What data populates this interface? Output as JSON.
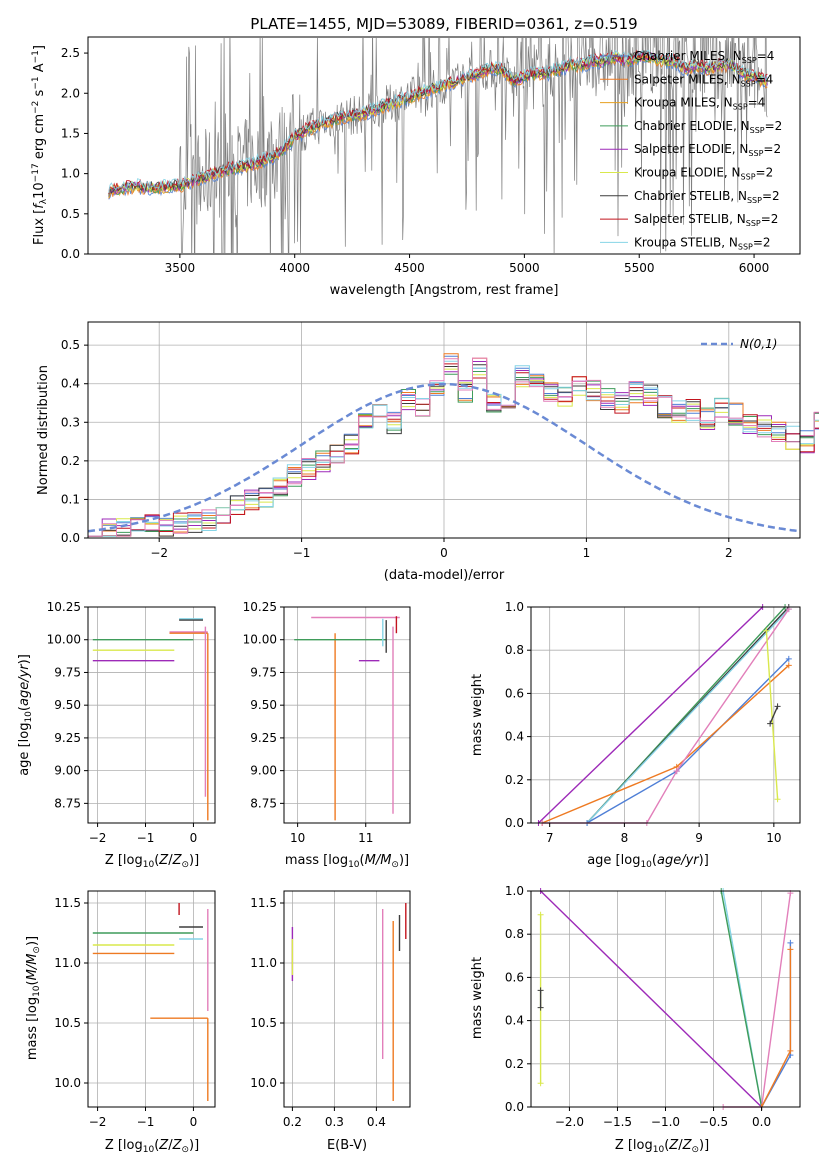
{
  "figure_title": "PLATE=1455, MJD=53089, FIBERID=0361, z=0.519",
  "colors": {
    "chabrier_miles": "#4f7fd6",
    "salpeter_miles": "#ee7a22",
    "kroupa_miles": "#e6a020",
    "chabrier_elodie": "#3f9c5a",
    "salpeter_elodie": "#9d2ab8",
    "kroupa_elodie": "#d9e84c",
    "chabrier_stelib": "#3d3d3d",
    "salpeter_stelib": "#c2141e",
    "kroupa_stelib": "#86d4e6",
    "pink": "#e27fba",
    "gaussian": "#6a8ad4",
    "data_line": "#7f7f7f",
    "grid": "#b0b0b0"
  },
  "chart_data": [
    {
      "id": "spectrum",
      "type": "line",
      "title": "PLATE=1455, MJD=53089, FIBERID=0361, z=0.519",
      "xlabel": "wavelength [Angstrom, rest frame]",
      "ylabel": "Flux [f_λ 10^-17 erg cm^-2 s^-1 A^-1]",
      "xlim": [
        3100,
        6200
      ],
      "ylim": [
        0,
        2.7
      ],
      "xticks": [
        3500,
        4000,
        4500,
        5000,
        5500,
        6000
      ],
      "yticks": [
        0.0,
        0.5,
        1.0,
        1.5,
        2.0,
        2.5
      ],
      "grid": false,
      "legend_position": "top-right",
      "legend": [
        {
          "label": "Chabrier MILES, N_SSP=4",
          "color": "#4f7fd6"
        },
        {
          "label": "Salpeter MILES, N_SSP=4",
          "color": "#ee7a22"
        },
        {
          "label": "Kroupa MILES, N_SSP=4",
          "color": "#e6a020"
        },
        {
          "label": "Chabrier ELODIE, N_SSP=2",
          "color": "#3f9c5a"
        },
        {
          "label": "Salpeter ELODIE, N_SSP=2",
          "color": "#9d2ab8"
        },
        {
          "label": "Kroupa ELODIE, N_SSP=2",
          "color": "#d9e84c"
        },
        {
          "label": "Chabrier STELIB, N_SSP=2",
          "color": "#3d3d3d"
        },
        {
          "label": "Salpeter STELIB, N_SSP=2",
          "color": "#c2141e"
        },
        {
          "label": "Kroupa STELIB, N_SSP=2",
          "color": "#86d4e6"
        }
      ],
      "model_x": [
        3190,
        3250,
        3300,
        3350,
        3400,
        3450,
        3500,
        3550,
        3600,
        3650,
        3700,
        3750,
        3800,
        3850,
        3900,
        3950,
        4000,
        4050,
        4100,
        4150,
        4200,
        4250,
        4300,
        4350,
        4400,
        4450,
        4500,
        4550,
        4600,
        4650,
        4700,
        4750,
        4800,
        4850,
        4900,
        4950,
        5000,
        5050,
        5100,
        5150,
        5200,
        5250,
        5300,
        5350,
        5400,
        5450,
        5500,
        5550,
        5600,
        5650,
        5700,
        5750,
        5800,
        5850,
        5900,
        5950,
        6000,
        6050
      ],
      "model_y": [
        0.78,
        0.82,
        0.84,
        0.83,
        0.82,
        0.84,
        0.85,
        0.9,
        0.95,
        1.0,
        1.05,
        1.08,
        1.1,
        1.15,
        1.2,
        1.3,
        1.45,
        1.55,
        1.6,
        1.65,
        1.7,
        1.72,
        1.75,
        1.8,
        1.85,
        1.9,
        1.95,
        2.0,
        2.05,
        2.1,
        2.15,
        2.2,
        2.25,
        2.3,
        2.3,
        2.15,
        2.2,
        2.25,
        2.25,
        2.3,
        2.35,
        2.35,
        2.4,
        2.4,
        2.45,
        2.4,
        2.45,
        2.45,
        2.4,
        2.4,
        2.3,
        2.35,
        2.3,
        2.35,
        2.35,
        2.25,
        2.2,
        2.15
      ]
    },
    {
      "id": "residuals",
      "type": "line",
      "xlabel": "(data-model)/error",
      "ylabel": "Normed distribution",
      "xlim": [
        -2.5,
        2.5
      ],
      "ylim": [
        0,
        0.56
      ],
      "xticks": [
        -2,
        -1,
        0,
        1,
        2
      ],
      "yticks": [
        0.0,
        0.1,
        0.2,
        0.3,
        0.4,
        0.5
      ],
      "grid": true,
      "legend_position": "top-right",
      "legend_label": "N(0,1)",
      "hist_bin_width": 0.1,
      "hist_start": -2.5,
      "hist_values": [
        0.02,
        0.02,
        0.02,
        0.025,
        0.03,
        0.03,
        0.035,
        0.04,
        0.045,
        0.06,
        0.08,
        0.1,
        0.11,
        0.13,
        0.16,
        0.18,
        0.2,
        0.22,
        0.24,
        0.3,
        0.32,
        0.3,
        0.36,
        0.34,
        0.4,
        0.45,
        0.38,
        0.44,
        0.35,
        0.36,
        0.42,
        0.4,
        0.38,
        0.37,
        0.39,
        0.38,
        0.36,
        0.35,
        0.38,
        0.37,
        0.34,
        0.33,
        0.33,
        0.31,
        0.34,
        0.32,
        0.3,
        0.29,
        0.27,
        0.26,
        0.25,
        0.3,
        0.22,
        0.21,
        0.2,
        0.19,
        0.18,
        0.16,
        0.15,
        0.14,
        0.12,
        0.11,
        0.1,
        0.09,
        0.08,
        0.07,
        0.07,
        0.06,
        0.05,
        0.05,
        0.045,
        0.04,
        0.035,
        0.03,
        0.03,
        0.03,
        0.025,
        0.02,
        0.02,
        0.02
      ]
    },
    {
      "id": "age_vs_Z",
      "type": "scatter",
      "xlabel": "Z [log10(Z/Z⊙)]",
      "ylabel": "age  [log10(age/yr)]",
      "xlim": [
        -2.2,
        0.45
      ],
      "ylim": [
        8.6,
        10.25
      ],
      "xticks": [
        -2,
        -1,
        0
      ],
      "yticks": [
        8.75,
        9.0,
        9.25,
        9.5,
        9.75,
        10.0,
        10.25
      ],
      "grid": true,
      "segments": [
        {
          "color": "#3f9c5a",
          "x": [
            -2.1,
            0.0
          ],
          "y": [
            10.0,
            10.0
          ]
        },
        {
          "color": "#9d2ab8",
          "x": [
            -2.1,
            -0.4
          ],
          "y": [
            9.84,
            9.84
          ]
        },
        {
          "color": "#d9e84c",
          "x": [
            -2.1,
            -0.4
          ],
          "y": [
            9.92,
            9.92
          ]
        },
        {
          "color": "#e27fba",
          "x": [
            -0.5,
            0.3
          ],
          "y": [
            10.06,
            10.06
          ]
        },
        {
          "color": "#ee7a22",
          "x": [
            -0.5,
            0.3
          ],
          "y": [
            10.05,
            10.05
          ]
        },
        {
          "color": "#86d4e6",
          "x": [
            -0.3,
            0.2
          ],
          "y": [
            10.16,
            10.16
          ]
        },
        {
          "color": "#3d3d3d",
          "x": [
            -0.3,
            0.2
          ],
          "y": [
            10.15,
            10.15
          ]
        },
        {
          "color": "#ee7a22",
          "x": [
            0.3,
            0.3
          ],
          "y": [
            8.62,
            10.05
          ]
        },
        {
          "color": "#e27fba",
          "x": [
            0.25,
            0.25
          ],
          "y": [
            8.8,
            10.1
          ]
        }
      ]
    },
    {
      "id": "age_vs_mass",
      "type": "scatter",
      "xlabel": "mass [log10(M/M⊙)]",
      "ylabel": "",
      "xlim": [
        9.8,
        11.65
      ],
      "ylim": [
        8.6,
        10.25
      ],
      "xticks": [
        10,
        11
      ],
      "yticks": [
        8.75,
        9.0,
        9.25,
        9.5,
        9.75,
        10.0,
        10.25
      ],
      "grid": true,
      "segments": [
        {
          "color": "#ee7a22",
          "x": [
            10.55,
            10.55
          ],
          "y": [
            8.62,
            10.05
          ]
        },
        {
          "color": "#e27fba",
          "x": [
            11.4,
            11.4
          ],
          "y": [
            8.67,
            10.1
          ]
        },
        {
          "color": "#3f9c5a",
          "x": [
            9.95,
            11.3
          ],
          "y": [
            10.0,
            10.0
          ]
        },
        {
          "color": "#9d2ab8",
          "x": [
            10.9,
            11.2
          ],
          "y": [
            9.84,
            9.84
          ]
        },
        {
          "color": "#e27fba",
          "x": [
            10.2,
            11.5
          ],
          "y": [
            10.17,
            10.17
          ]
        },
        {
          "color": "#3d3d3d",
          "x": [
            11.3,
            11.3
          ],
          "y": [
            9.9,
            10.15
          ]
        },
        {
          "color": "#86d4e6",
          "x": [
            11.25,
            11.25
          ],
          "y": [
            9.95,
            10.16
          ]
        },
        {
          "color": "#c2141e",
          "x": [
            11.45,
            11.45
          ],
          "y": [
            10.05,
            10.18
          ]
        }
      ]
    },
    {
      "id": "massweight_vs_age",
      "type": "line",
      "xlabel": "age  [log10(age/yr)]",
      "ylabel": "mass weight",
      "xlim": [
        6.75,
        10.35
      ],
      "ylim": [
        0,
        1.0
      ],
      "xticks": [
        7,
        8,
        9,
        10
      ],
      "yticks": [
        0.0,
        0.2,
        0.4,
        0.6,
        0.8,
        1.0
      ],
      "grid": true,
      "series": [
        {
          "color": "#9d2ab8",
          "x": [
            6.85,
            9.85
          ],
          "y": [
            0.0,
            1.0
          ]
        },
        {
          "color": "#3f9c5a",
          "x": [
            7.5,
            10.15
          ],
          "y": [
            0.0,
            1.0
          ]
        },
        {
          "color": "#3d3d3d",
          "x": [
            7.5,
            10.2
          ],
          "y": [
            0.0,
            1.0
          ]
        },
        {
          "color": "#86d4e6",
          "x": [
            7.5,
            10.2
          ],
          "y": [
            0.0,
            0.99
          ]
        },
        {
          "color": "#4f7fd6",
          "x": [
            7.5,
            8.7,
            10.2
          ],
          "y": [
            0.0,
            0.24,
            0.76
          ]
        },
        {
          "color": "#ee7a22",
          "x": [
            6.9,
            8.7,
            10.2
          ],
          "y": [
            0.0,
            0.26,
            0.73
          ]
        },
        {
          "color": "#e27fba",
          "x": [
            6.9,
            8.3,
            8.7,
            10.2
          ],
          "y": [
            0.0,
            0.0,
            0.24,
            0.99
          ]
        },
        {
          "color": "#d9e84c",
          "x": [
            9.9,
            10.05
          ],
          "y": [
            0.89,
            0.11
          ]
        },
        {
          "color": "#3d3d3d",
          "x": [
            9.95,
            10.05
          ],
          "y": [
            0.46,
            0.54
          ]
        }
      ]
    },
    {
      "id": "mass_vs_Z",
      "type": "scatter",
      "xlabel": "Z [log10(Z/Z⊙)]",
      "ylabel": "mass [log10(M/M⊙)]",
      "xlim": [
        -2.2,
        0.45
      ],
      "ylim": [
        9.8,
        11.6
      ],
      "xticks": [
        -2,
        -1,
        0
      ],
      "yticks": [
        10.0,
        10.5,
        11.0,
        11.5
      ],
      "grid": true,
      "segments": [
        {
          "color": "#3f9c5a",
          "x": [
            -2.1,
            0.0
          ],
          "y": [
            11.25,
            11.25
          ]
        },
        {
          "color": "#d9e84c",
          "x": [
            -2.1,
            -0.4
          ],
          "y": [
            11.15,
            11.15
          ]
        },
        {
          "color": "#ee7a22",
          "x": [
            -2.1,
            -0.4
          ],
          "y": [
            11.08,
            11.08
          ]
        },
        {
          "color": "#ee7a22",
          "x": [
            -0.9,
            0.3
          ],
          "y": [
            10.54,
            10.54
          ]
        },
        {
          "color": "#ee7a22",
          "x": [
            0.3,
            0.3
          ],
          "y": [
            9.85,
            10.54
          ]
        },
        {
          "color": "#e27fba",
          "x": [
            0.3,
            0.3
          ],
          "y": [
            10.6,
            11.45
          ]
        },
        {
          "color": "#3d3d3d",
          "x": [
            -0.3,
            0.2
          ],
          "y": [
            11.3,
            11.3
          ]
        },
        {
          "color": "#86d4e6",
          "x": [
            -0.3,
            0.2
          ],
          "y": [
            11.2,
            11.2
          ]
        },
        {
          "color": "#c2141e",
          "x": [
            -0.3,
            -0.3
          ],
          "y": [
            11.4,
            11.5
          ]
        }
      ]
    },
    {
      "id": "mass_vs_EBV",
      "type": "scatter",
      "xlabel": "E(B-V)",
      "ylabel": "",
      "xlim": [
        0.18,
        0.48
      ],
      "ylim": [
        9.8,
        11.6
      ],
      "xticks": [
        0.2,
        0.3,
        0.4
      ],
      "yticks": [
        10.0,
        10.5,
        11.0,
        11.5
      ],
      "grid": true,
      "segments": [
        {
          "color": "#9d2ab8",
          "x": [
            0.2,
            0.2
          ],
          "y": [
            10.85,
            11.3
          ]
        },
        {
          "color": "#d9e84c",
          "x": [
            0.2,
            0.2
          ],
          "y": [
            10.9,
            11.2
          ]
        },
        {
          "color": "#e27fba",
          "x": [
            0.415,
            0.415
          ],
          "y": [
            10.2,
            11.45
          ]
        },
        {
          "color": "#ee7a22",
          "x": [
            0.44,
            0.44
          ],
          "y": [
            9.85,
            10.55
          ]
        },
        {
          "color": "#ee7a22",
          "x": [
            0.44,
            0.44
          ],
          "y": [
            10.55,
            11.35
          ]
        },
        {
          "color": "#3d3d3d",
          "x": [
            0.455,
            0.455
          ],
          "y": [
            11.1,
            11.4
          ]
        },
        {
          "color": "#c2141e",
          "x": [
            0.47,
            0.47
          ],
          "y": [
            11.2,
            11.5
          ]
        }
      ]
    },
    {
      "id": "massweight_vs_Z",
      "type": "line",
      "xlabel": "Z [log10(Z/Z⊙)]",
      "ylabel": "mass weight",
      "xlim": [
        -2.4,
        0.4
      ],
      "ylim": [
        0,
        1.0
      ],
      "xticks": [
        -2.0,
        -1.5,
        -1.0,
        -0.5,
        0.0
      ],
      "yticks": [
        0.0,
        0.2,
        0.4,
        0.6,
        0.8,
        1.0
      ],
      "grid": true,
      "series": [
        {
          "color": "#9d2ab8",
          "x": [
            -2.3,
            0.0
          ],
          "y": [
            1.0,
            0.0
          ]
        },
        {
          "color": "#86d4e6",
          "x": [
            -0.4,
            0.0
          ],
          "y": [
            1.0,
            0.0
          ]
        },
        {
          "color": "#3f9c5a",
          "x": [
            -0.42,
            0.0
          ],
          "y": [
            1.0,
            0.0
          ]
        },
        {
          "color": "#e27fba",
          "x": [
            -0.4,
            0.0,
            0.3
          ],
          "y": [
            0.0,
            0.0,
            0.99
          ]
        },
        {
          "color": "#4f7fd6",
          "x": [
            0.0,
            0.3,
            0.3
          ],
          "y": [
            0.0,
            0.24,
            0.76
          ]
        },
        {
          "color": "#ee7a22",
          "x": [
            0.0,
            0.3,
            0.3
          ],
          "y": [
            0.0,
            0.26,
            0.73
          ]
        },
        {
          "color": "#d9e84c",
          "x": [
            -2.3,
            -2.3
          ],
          "y": [
            0.11,
            0.89
          ]
        },
        {
          "color": "#3d3d3d",
          "x": [
            -2.3,
            -2.3
          ],
          "y": [
            0.46,
            0.54
          ]
        }
      ]
    }
  ]
}
